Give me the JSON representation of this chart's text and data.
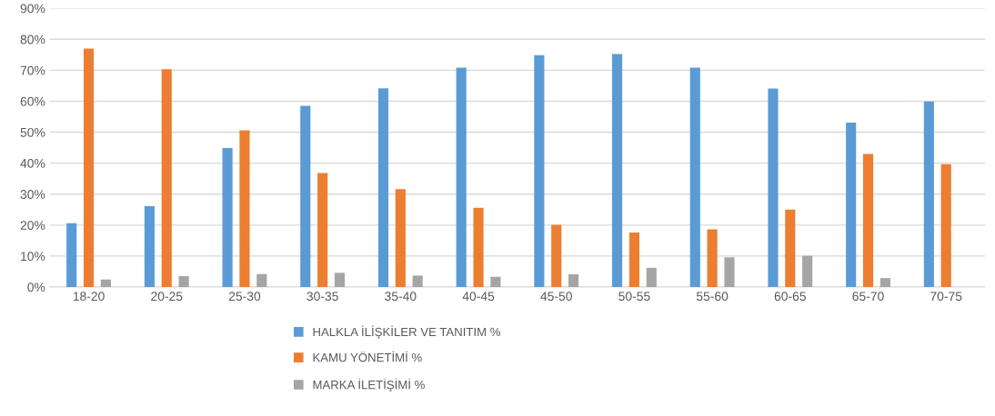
{
  "chart_data": {
    "type": "bar",
    "categories": [
      "18-20",
      "20-25",
      "25-30",
      "30-35",
      "35-40",
      "40-45",
      "45-50",
      "50-55",
      "55-60",
      "60-65",
      "65-70",
      "70-75"
    ],
    "series": [
      {
        "name": "HALKLA İLİŞKİLER VE TANITIM %",
        "color": "#5b9bd5",
        "values": [
          20.6,
          26.1,
          44.9,
          58.5,
          64.2,
          70.8,
          74.9,
          75.2,
          70.8,
          64.1,
          53.1,
          59.9
        ]
      },
      {
        "name": "KAMU YÖNETİMİ %",
        "color": "#ed7d31",
        "values": [
          77.0,
          70.3,
          50.6,
          36.8,
          31.6,
          25.6,
          20.1,
          17.6,
          18.6,
          25.0,
          43.0,
          39.7
        ]
      },
      {
        "name": "MARKA İLETİŞİMİ %",
        "color": "#a5a5a5",
        "values": [
          2.4,
          3.5,
          4.2,
          4.6,
          3.7,
          3.3,
          4.1,
          6.2,
          9.6,
          10.1,
          2.9,
          null
        ]
      }
    ],
    "ylim": [
      0,
      90
    ],
    "yticks": [
      {
        "value": 0,
        "label": "0%"
      },
      {
        "value": 10,
        "label": "10%"
      },
      {
        "value": 20,
        "label": "20%"
      },
      {
        "value": 30,
        "label": "30%"
      },
      {
        "value": 40,
        "label": "40%"
      },
      {
        "value": 50,
        "label": "50%"
      },
      {
        "value": 60,
        "label": "60%"
      },
      {
        "value": 70,
        "label": "70%"
      },
      {
        "value": 80,
        "label": "80%"
      },
      {
        "value": 90,
        "label": "90%"
      }
    ],
    "grid": "y",
    "legend": "bottom"
  }
}
